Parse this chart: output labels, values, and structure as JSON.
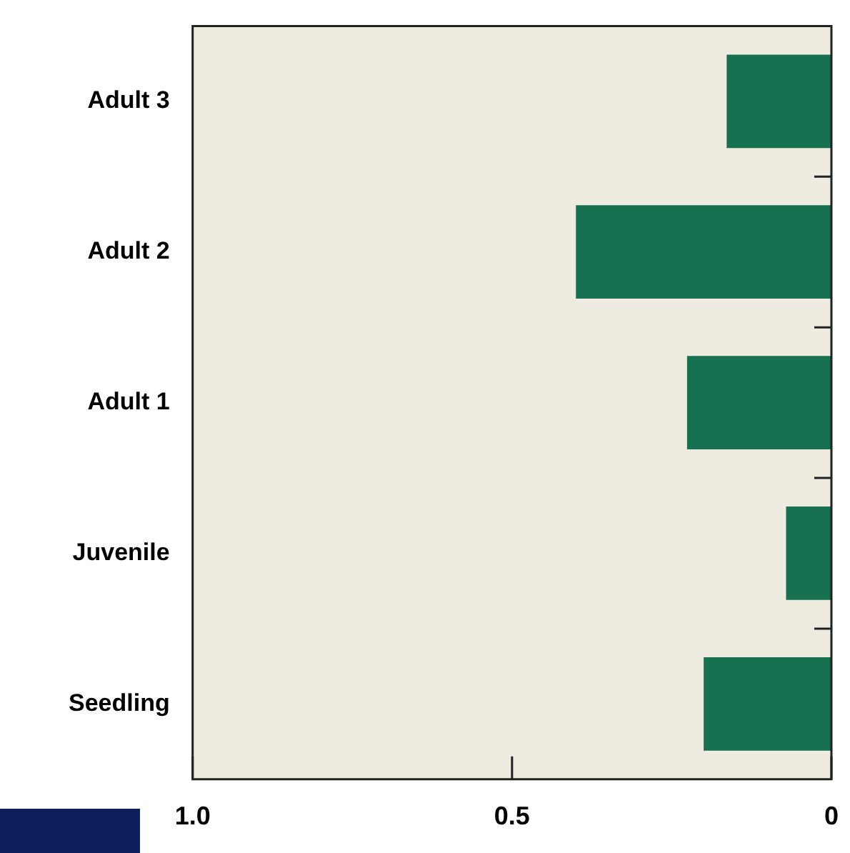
{
  "chart_data": {
    "type": "bar",
    "orientation": "horizontal",
    "categories": [
      "Adult 3",
      "Adult 2",
      "Adult 1",
      "Juvenile",
      "Seedling"
    ],
    "values": [
      0.164,
      0.4,
      0.226,
      0.071,
      0.2
    ],
    "color": "#177050",
    "xlim": [
      1.0,
      0
    ],
    "xticks": [
      {
        "value": 1.0,
        "label": "1.0"
      },
      0.5,
      0
    ]
  }
}
